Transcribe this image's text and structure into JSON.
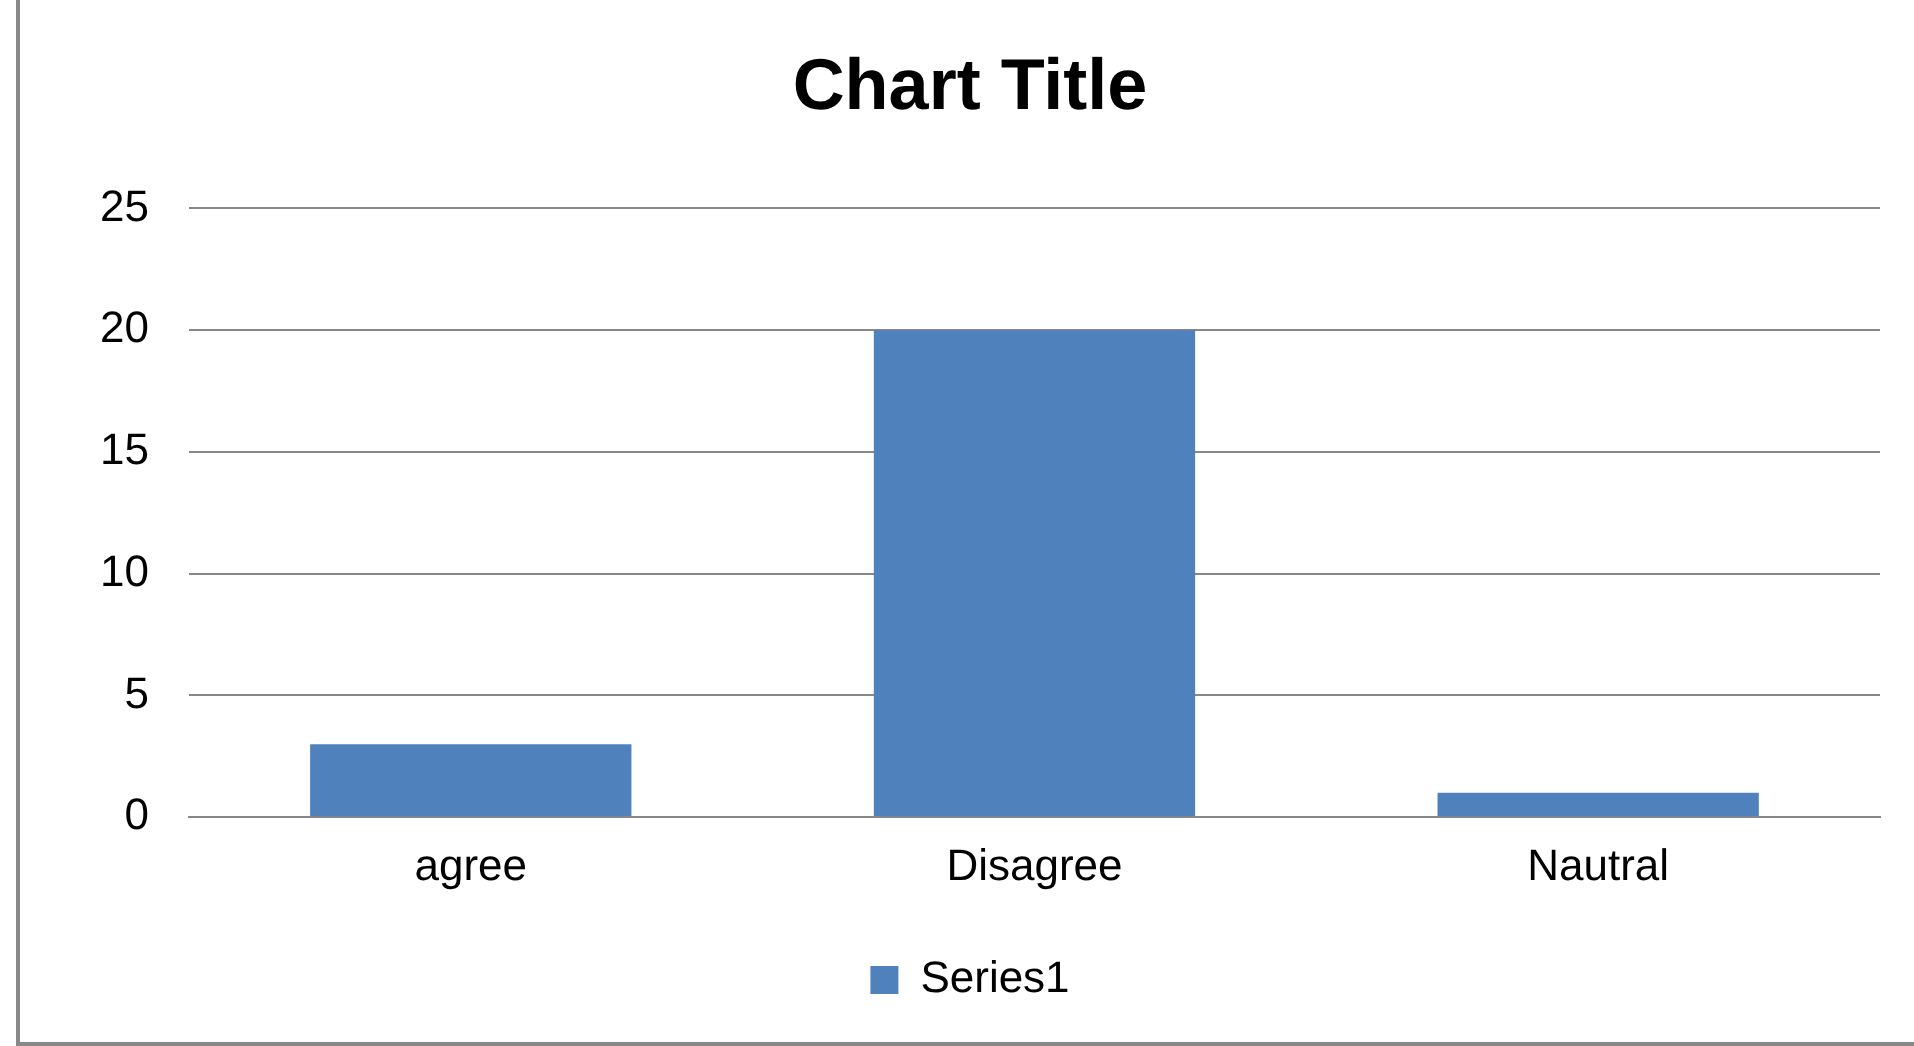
{
  "chart_data": {
    "type": "bar",
    "title": "Chart Title",
    "categories": [
      "agree",
      "Disagree",
      "Nautral"
    ],
    "series": [
      {
        "name": "Series1",
        "color": "#4f81bd",
        "values": [
          3,
          20,
          1
        ]
      }
    ],
    "ylim": [
      0,
      25
    ],
    "yticks": [
      0,
      5,
      10,
      15,
      20,
      25
    ],
    "grid": "y",
    "legend": "bottom"
  }
}
